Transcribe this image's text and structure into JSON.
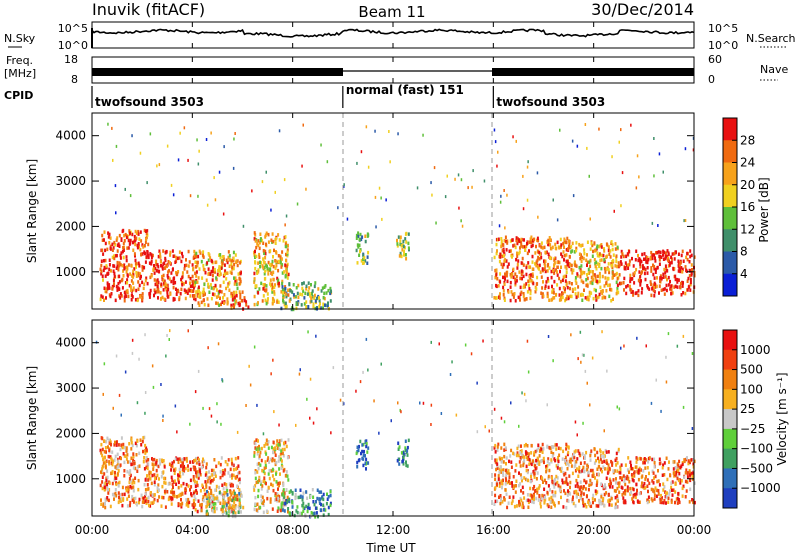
{
  "header": {
    "station": "Inuvik (fitACF)",
    "beam": "Beam 11",
    "date": "30/Dec/2014"
  },
  "top_panels": {
    "nsky_label": "N.Sky",
    "nsky_ticks": [
      "10^5",
      "10^0"
    ],
    "nsearch_label": "N.Search",
    "nsearch_ticks": [
      "10^5",
      "10^0"
    ],
    "freq_label": "Freq.",
    "freq_unit": "[MHz]",
    "freq_ticks": [
      "18",
      "8"
    ],
    "nave_label": "Nave",
    "nave_ticks": [
      "60",
      "0"
    ],
    "cpid_label": "CPID",
    "cpid_segments": [
      {
        "label": "twofsound 3503",
        "start_h": 0,
        "end_h": 10
      },
      {
        "label": "normal (fast) 151",
        "start_h": 10,
        "end_h": 16
      },
      {
        "label": "twofsound 3503",
        "start_h": 16,
        "end_h": 24
      }
    ]
  },
  "time_axis": {
    "label": "Time UT",
    "ticks": [
      "00:00",
      "04:00",
      "08:00",
      "12:00",
      "16:00",
      "20:00",
      "00:00"
    ]
  },
  "chart_data": [
    {
      "type": "heatmap",
      "title": "",
      "xlabel": "Time UT",
      "ylabel": "Slant Range [km]",
      "xlim": [
        0,
        24
      ],
      "ylim": [
        180,
        4500
      ],
      "yticks": [
        "1000",
        "2000",
        "3000",
        "4000"
      ],
      "colorbar_label": "Power [dB]",
      "colorbar_ticks": [
        "4",
        "8",
        "12",
        "16",
        "20",
        "24",
        "28"
      ],
      "colorscale": [
        "#0a1fd6",
        "#2b5aa8",
        "#3f8f6a",
        "#5fbf3a",
        "#f0d020",
        "#f7a21b",
        "#f06a10",
        "#e81010"
      ],
      "echo_regions": [
        {
          "t": [
            0.3,
            2.2
          ],
          "r": [
            400,
            1950
          ],
          "level": 0.85
        },
        {
          "t": [
            2.2,
            4.2
          ],
          "r": [
            400,
            1500
          ],
          "level": 0.9
        },
        {
          "t": [
            4.0,
            5.9
          ],
          "r": [
            300,
            1500
          ],
          "level": 0.7
        },
        {
          "t": [
            5.5,
            6.2
          ],
          "r": [
            200,
            600
          ],
          "level": 0.95
        },
        {
          "t": [
            6.4,
            7.8
          ],
          "r": [
            300,
            1900
          ],
          "level": 0.65
        },
        {
          "t": [
            7.5,
            9.5
          ],
          "r": [
            200,
            800
          ],
          "level": 0.45
        },
        {
          "t": [
            10.5,
            11.0
          ],
          "r": [
            1200,
            1900
          ],
          "level": 0.4
        },
        {
          "t": [
            12.1,
            12.6
          ],
          "r": [
            1300,
            1900
          ],
          "level": 0.5
        },
        {
          "t": [
            16.0,
            19.0
          ],
          "r": [
            400,
            1800
          ],
          "level": 0.8
        },
        {
          "t": [
            19.0,
            21.0
          ],
          "r": [
            400,
            1700
          ],
          "level": 0.7
        },
        {
          "t": [
            21.0,
            24.0
          ],
          "r": [
            500,
            1500
          ],
          "level": 0.95
        }
      ]
    },
    {
      "type": "heatmap",
      "title": "",
      "xlabel": "Time UT",
      "ylabel": "Slant Range [km]",
      "xlim": [
        0,
        24
      ],
      "ylim": [
        180,
        4500
      ],
      "yticks": [
        "1000",
        "2000",
        "3000",
        "4000"
      ],
      "colorbar_label": "Velocity [m s⁻¹]",
      "colorbar_ticks": [
        "1000",
        "500",
        "100",
        "25",
        "−25",
        "−100",
        "−500",
        "−1000"
      ],
      "colorscale": [
        "#1f3fbf",
        "#2f6fb8",
        "#3fa060",
        "#5fcf3a",
        "#c8c8c8",
        "#f7b020",
        "#f08010",
        "#f04010",
        "#e81010"
      ],
      "echo_regions": [
        {
          "t": [
            0.3,
            2.2
          ],
          "r": [
            400,
            1950
          ],
          "level": 0.7
        },
        {
          "t": [
            2.2,
            4.2
          ],
          "r": [
            400,
            1500
          ],
          "level": 0.75
        },
        {
          "t": [
            4.0,
            5.9
          ],
          "r": [
            300,
            1500
          ],
          "level": 0.7
        },
        {
          "t": [
            4.5,
            6.0
          ],
          "r": [
            200,
            800
          ],
          "level": 0.45
        },
        {
          "t": [
            6.4,
            7.8
          ],
          "r": [
            300,
            1900
          ],
          "level": 0.6
        },
        {
          "t": [
            7.5,
            9.5
          ],
          "r": [
            200,
            800
          ],
          "level": 0.3
        },
        {
          "t": [
            10.5,
            11.0
          ],
          "r": [
            1200,
            1900
          ],
          "level": 0.2
        },
        {
          "t": [
            12.1,
            12.6
          ],
          "r": [
            1300,
            1900
          ],
          "level": 0.15
        },
        {
          "t": [
            16.0,
            19.0
          ],
          "r": [
            400,
            1800
          ],
          "level": 0.7
        },
        {
          "t": [
            19.0,
            21.0
          ],
          "r": [
            400,
            1700
          ],
          "level": 0.7
        },
        {
          "t": [
            21.0,
            24.0
          ],
          "r": [
            500,
            1500
          ],
          "level": 0.75
        }
      ]
    }
  ]
}
